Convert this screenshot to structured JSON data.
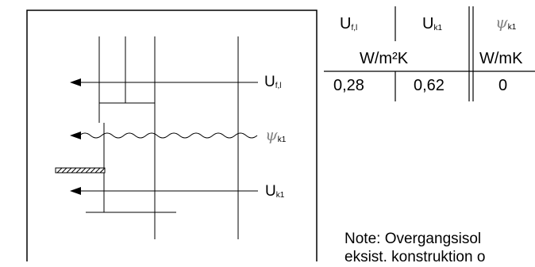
{
  "diagram": {
    "labels": {
      "u_fl": {
        "main": "U",
        "sub": "f,l"
      },
      "psi_k1": {
        "main": "ψ",
        "sub": "k1"
      },
      "u_k1": {
        "main": "U",
        "sub": "k1"
      }
    }
  },
  "table": {
    "headers": [
      {
        "main": "U",
        "sub": "f,l"
      },
      {
        "main": "U",
        "sub": "k1"
      },
      {
        "main": "ψ",
        "sub": "k1"
      }
    ],
    "units": [
      "W/m²K",
      "W/mK"
    ],
    "values": [
      "0,28",
      "0,62",
      "0"
    ]
  },
  "note": {
    "line1": "Note: Overgangsisol",
    "line2": "eksist. konstruktion o"
  }
}
